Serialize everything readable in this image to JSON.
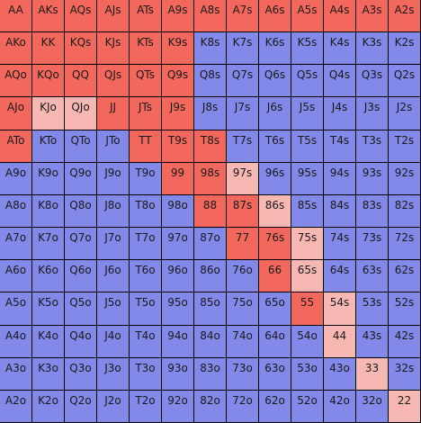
{
  "colors": {
    "R": "#f2685c",
    "P": "#f7b7b3",
    "B": "#8289e8"
  },
  "rows": [
    [
      "AA",
      "AKs",
      "AQs",
      "AJs",
      "ATs",
      "A9s",
      "A8s",
      "A7s",
      "A6s",
      "A5s",
      "A4s",
      "A3s",
      "A2s"
    ],
    [
      "AKo",
      "KK",
      "KQs",
      "KJs",
      "KTs",
      "K9s",
      "K8s",
      "K7s",
      "K6s",
      "K5s",
      "K4s",
      "K3s",
      "K2s"
    ],
    [
      "AQo",
      "KQo",
      "QQ",
      "QJs",
      "QTs",
      "Q9s",
      "Q8s",
      "Q7s",
      "Q6s",
      "Q5s",
      "Q4s",
      "Q3s",
      "Q2s"
    ],
    [
      "AJo",
      "KJo",
      "QJo",
      "JJ",
      "JTs",
      "J9s",
      "J8s",
      "J7s",
      "J6s",
      "J5s",
      "J4s",
      "J3s",
      "J2s"
    ],
    [
      "ATo",
      "KTo",
      "QTo",
      "JTo",
      "TT",
      "T9s",
      "T8s",
      "T7s",
      "T6s",
      "T5s",
      "T4s",
      "T3s",
      "T2s"
    ],
    [
      "A9o",
      "K9o",
      "Q9o",
      "J9o",
      "T9o",
      "99",
      "98s",
      "97s",
      "96s",
      "95s",
      "94s",
      "93s",
      "92s"
    ],
    [
      "A8o",
      "K8o",
      "Q8o",
      "J8o",
      "T8o",
      "98o",
      "88",
      "87s",
      "86s",
      "85s",
      "84s",
      "83s",
      "82s"
    ],
    [
      "A7o",
      "K7o",
      "Q7o",
      "J7o",
      "T7o",
      "97o",
      "87o",
      "77",
      "76s",
      "75s",
      "74s",
      "73s",
      "72s"
    ],
    [
      "A6o",
      "K6o",
      "Q6o",
      "J6o",
      "T6o",
      "96o",
      "86o",
      "76o",
      "66",
      "65s",
      "64s",
      "63s",
      "62s"
    ],
    [
      "A5o",
      "K5o",
      "Q5o",
      "J5o",
      "T5o",
      "95o",
      "85o",
      "75o",
      "65o",
      "55",
      "54s",
      "53s",
      "52s"
    ],
    [
      "A4o",
      "K4o",
      "Q4o",
      "J4o",
      "T4o",
      "94o",
      "84o",
      "74o",
      "64o",
      "54o",
      "44",
      "43s",
      "42s"
    ],
    [
      "A3o",
      "K3o",
      "Q3o",
      "J3o",
      "T3o",
      "93o",
      "83o",
      "73o",
      "63o",
      "53o",
      "43o",
      "33",
      "32s"
    ],
    [
      "A2o",
      "K2o",
      "Q2o",
      "J2o",
      "T2o",
      "92o",
      "82o",
      "72o",
      "62o",
      "52o",
      "42o",
      "32o",
      "22"
    ]
  ],
  "cell_colors": [
    "RRRRRRRRRRRRR",
    "RRRRRRBBBBBBB",
    "RRRRRRBBBBBBB",
    "RPPRRRBBBBBBB",
    "RBBBRRRBBBBBB",
    "BBBBBRRPBBBBB",
    "BBBBBBRRPBBBB",
    "BBBBBBBRRPBBB",
    "BBBBBBBBRPBBB",
    "BBBBBBBBBRPBB",
    "BBBBBBBBBBPBB",
    "BBBBBBBBBBBPB",
    "BBBBBBBBBBBBP"
  ]
}
